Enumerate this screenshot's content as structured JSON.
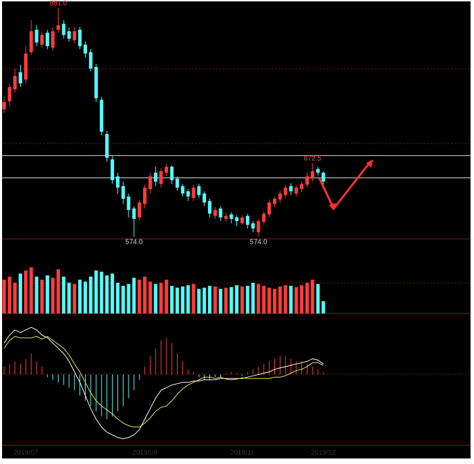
{
  "chart_data": {
    "type": "candlestick",
    "x": [
      null,
      null,
      null,
      null,
      "2019/07",
      null,
      null,
      null,
      null,
      null,
      null,
      null,
      null,
      null,
      null,
      null,
      null,
      null,
      null,
      null,
      null,
      null,
      null,
      null,
      null,
      null,
      "2019/09",
      null,
      null,
      null,
      null,
      null,
      null,
      null,
      null,
      null,
      null,
      null,
      null,
      null,
      null,
      null,
      null,
      null,
      "2019/11",
      null,
      null,
      null,
      null,
      null,
      null,
      null,
      null,
      null,
      null,
      null,
      null,
      null,
      null,
      "2019/12"
    ],
    "open": [
      745,
      756,
      772,
      795,
      785,
      822,
      852,
      832,
      848,
      828,
      852,
      860,
      850,
      838,
      852,
      832,
      822,
      802,
      758,
      712,
      678,
      655,
      642,
      628,
      612,
      600,
      618,
      638,
      660,
      645,
      660,
      668,
      652,
      642,
      635,
      626,
      642,
      632,
      622,
      602,
      612,
      598,
      604,
      600,
      592,
      602,
      592,
      580,
      594,
      604,
      618,
      624,
      630,
      642,
      632,
      638,
      644,
      652,
      665,
      660
    ],
    "high": [
      762,
      780,
      800,
      805,
      830,
      865,
      858,
      850,
      852,
      855,
      881,
      865,
      855,
      856,
      856,
      836,
      826,
      806,
      762,
      716,
      682,
      660,
      648,
      632,
      615,
      624,
      644,
      660,
      668,
      666,
      672,
      670,
      655,
      645,
      638,
      644,
      645,
      635,
      625,
      614,
      615,
      606,
      607,
      603,
      603,
      605,
      595,
      598,
      608,
      624,
      628,
      636,
      644,
      646,
      643,
      648,
      660,
      672.5,
      668,
      662
    ],
    "low": [
      740,
      750,
      768,
      775,
      780,
      818,
      830,
      828,
      826,
      824,
      848,
      840,
      836,
      834,
      826,
      815,
      796,
      755,
      710,
      675,
      645,
      632,
      618,
      600,
      574,
      596,
      612,
      632,
      642,
      640,
      655,
      645,
      636,
      628,
      622,
      622,
      626,
      615,
      600,
      598,
      595,
      594,
      592,
      588,
      590,
      585,
      580,
      574,
      590,
      600,
      614,
      620,
      626,
      630,
      628,
      634,
      640,
      648,
      656,
      644
    ],
    "close": [
      755,
      775,
      790,
      780,
      820,
      850,
      835,
      845,
      830,
      850,
      858,
      845,
      840,
      850,
      830,
      820,
      800,
      760,
      715,
      680,
      650,
      640,
      625,
      610,
      598,
      620,
      640,
      655,
      648,
      662,
      668,
      650,
      640,
      632,
      628,
      640,
      630,
      620,
      605,
      610,
      600,
      602,
      598,
      595,
      600,
      590,
      585,
      595,
      605,
      620,
      625,
      632,
      640,
      635,
      640,
      645,
      655,
      662,
      660,
      648
    ],
    "ylim": [
      572,
      892
    ],
    "hlines": [
      683,
      653
    ],
    "up_color": "#ff3c3c",
    "down_color": "#54fcfc",
    "annotations": [
      {
        "label": "881.0",
        "value": 881,
        "index": 10
      },
      {
        "label": "574.0",
        "value": 574,
        "index": 24
      },
      {
        "label": "574.0",
        "value": 574,
        "index": 47
      },
      {
        "label": "672.5",
        "value": 672.5,
        "index": 57
      }
    ],
    "volume": {
      "values": [
        55,
        60,
        50,
        65,
        70,
        75,
        60,
        55,
        62,
        58,
        72,
        60,
        50,
        48,
        55,
        52,
        60,
        70,
        68,
        62,
        65,
        50,
        45,
        48,
        58,
        55,
        60,
        52,
        48,
        50,
        55,
        45,
        42,
        44,
        46,
        48,
        40,
        42,
        45,
        44,
        40,
        42,
        43,
        46,
        44,
        45,
        50,
        48,
        45,
        42,
        40,
        44,
        46,
        45,
        43,
        46,
        50,
        55,
        48,
        20
      ],
      "ylim": [
        0,
        100
      ]
    },
    "macd": {
      "ylim": [
        -27,
        23
      ],
      "hist": [
        3,
        4,
        5,
        4,
        6,
        8,
        5,
        3,
        -1,
        -2,
        -3,
        -4,
        -5,
        -6,
        -8,
        -10,
        -12,
        -14,
        -16,
        -17,
        -16,
        -14,
        -12,
        -9,
        -6,
        -2,
        3,
        7,
        10,
        13,
        14,
        12,
        8,
        5,
        2,
        1,
        -1,
        -2,
        -2,
        -1,
        -1,
        0.5,
        1,
        0.5,
        -0.5,
        1,
        2,
        3,
        4,
        5,
        6,
        7,
        7,
        6,
        5,
        5,
        4,
        3,
        2,
        1
      ],
      "dif": [
        12,
        15,
        17,
        16,
        17,
        18,
        17,
        15,
        14,
        12,
        10,
        8,
        5,
        1,
        -3,
        -8,
        -13,
        -17,
        -20,
        -22,
        -23,
        -24,
        -24.5,
        -24,
        -23,
        -21,
        -17,
        -13,
        -9,
        -6,
        -5,
        -4,
        -3.5,
        -3,
        -3,
        -2.5,
        -2.5,
        -2,
        -2,
        -2,
        -1.5,
        -1.5,
        -1.5,
        -1.5,
        -1.5,
        -1,
        -0.5,
        0,
        0.5,
        1,
        2,
        2.5,
        3,
        3.5,
        4,
        4.5,
        5,
        6,
        5.5,
        4
      ],
      "dea": [
        10,
        13,
        14.5,
        14,
        14,
        14,
        14.5,
        13.5,
        14.5,
        13,
        11.5,
        10,
        7.5,
        4,
        1,
        -3,
        -7,
        -10,
        -12,
        -13.5,
        -15,
        -17,
        -18.5,
        -19.5,
        -20,
        -20,
        -18.5,
        -16.5,
        -14,
        -12.5,
        -12,
        -10,
        -7.5,
        -5.5,
        -4,
        -3,
        -2,
        -1,
        -1,
        -1.5,
        -1,
        -1.75,
        -2,
        -1.75,
        -1.25,
        -1.5,
        -1.5,
        -1.5,
        -1.5,
        -1.5,
        -1,
        -1,
        -0.5,
        0.5,
        1.5,
        2,
        3,
        4.5,
        4.5,
        3.5
      ]
    }
  }
}
